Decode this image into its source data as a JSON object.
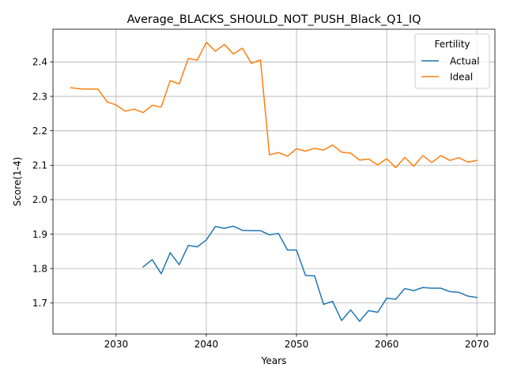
{
  "chart_data": {
    "type": "line",
    "title": "Average_BLACKS_SHOULD_NOT_PUSH_Black_Q1_IQ",
    "xlabel": "Years",
    "ylabel": "Score(1-4)",
    "xlim": [
      2023,
      2072
    ],
    "ylim": [
      1.61,
      2.495
    ],
    "xticks": [
      2030,
      2040,
      2050,
      2060,
      2070
    ],
    "yticks": [
      1.7,
      1.8,
      1.9,
      2.0,
      2.1,
      2.2,
      2.3,
      2.4
    ],
    "grid": true,
    "legend": {
      "title": "Fertility",
      "placement": "top-right"
    },
    "series": [
      {
        "name": "Actual",
        "color": "#1f77b4",
        "x": [
          2033,
          2034,
          2035,
          2036,
          2037,
          2038,
          2039,
          2040,
          2041,
          2042,
          2043,
          2044,
          2045,
          2046,
          2047,
          2048,
          2049,
          2050,
          2051,
          2052,
          2053,
          2054,
          2055,
          2056,
          2057,
          2058,
          2059,
          2060,
          2061,
          2062,
          2063,
          2064,
          2065,
          2066,
          2067,
          2068,
          2069,
          2070
        ],
        "values": [
          1.805,
          1.826,
          1.785,
          1.846,
          1.811,
          1.867,
          1.863,
          1.883,
          1.922,
          1.917,
          1.923,
          1.911,
          1.91,
          1.91,
          1.898,
          1.902,
          1.854,
          1.854,
          1.78,
          1.779,
          1.696,
          1.705,
          1.649,
          1.68,
          1.647,
          1.678,
          1.673,
          1.714,
          1.711,
          1.742,
          1.736,
          1.745,
          1.743,
          1.743,
          1.733,
          1.731,
          1.72,
          1.716
        ]
      },
      {
        "name": "Ideal",
        "color": "#ff7f0e",
        "x": [
          2025,
          2026,
          2027,
          2028,
          2029,
          2030,
          2031,
          2032,
          2033,
          2034,
          2035,
          2036,
          2037,
          2038,
          2039,
          2040,
          2041,
          2042,
          2043,
          2044,
          2045,
          2046,
          2047,
          2048,
          2049,
          2050,
          2051,
          2052,
          2053,
          2054,
          2055,
          2056,
          2057,
          2058,
          2059,
          2060,
          2061,
          2062,
          2063,
          2064,
          2065,
          2066,
          2067,
          2068,
          2069,
          2070
        ],
        "values": [
          2.325,
          2.322,
          2.321,
          2.321,
          2.284,
          2.275,
          2.257,
          2.263,
          2.253,
          2.274,
          2.269,
          2.346,
          2.336,
          2.41,
          2.405,
          2.457,
          2.431,
          2.451,
          2.423,
          2.44,
          2.396,
          2.406,
          2.13,
          2.137,
          2.126,
          2.148,
          2.141,
          2.149,
          2.144,
          2.159,
          2.138,
          2.135,
          2.115,
          2.118,
          2.101,
          2.119,
          2.093,
          2.123,
          2.097,
          2.128,
          2.108,
          2.128,
          2.114,
          2.122,
          2.109,
          2.114
        ]
      }
    ]
  }
}
